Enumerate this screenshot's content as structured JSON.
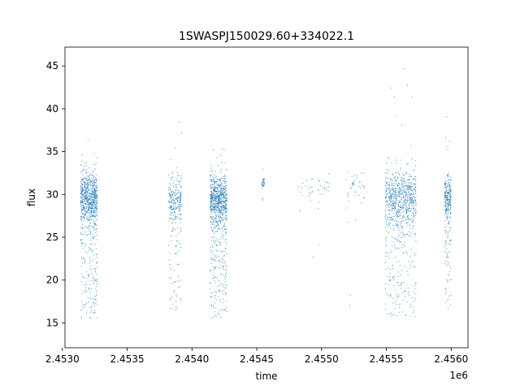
{
  "chart_data": {
    "type": "scatter",
    "title": "1SWASPJ150029.60+334022.1",
    "xlabel": "time",
    "ylabel": "flux",
    "x_offset_label": "1e6",
    "xlim": [
      2.45302,
      2.45613
    ],
    "ylim": [
      12.1,
      47.2
    ],
    "x_ticks": [
      2.453,
      2.4535,
      2.454,
      2.4545,
      2.455,
      2.4555,
      2.456
    ],
    "x_tick_labels": [
      "2.4530",
      "2.4535",
      "2.4540",
      "2.4545",
      "2.4550",
      "2.4555",
      "2.4560"
    ],
    "y_ticks": [
      15,
      20,
      25,
      30,
      35,
      40,
      45
    ],
    "y_tick_labels": [
      "15",
      "20",
      "25",
      "30",
      "35",
      "40",
      "45"
    ],
    "grid": false,
    "legend": "none",
    "point_color": "#1f77b4",
    "series": [
      {
        "clusters": [
          {
            "x_range": [
              2.45314,
              2.45327
            ],
            "y_center": 29.6,
            "y_spread": 1.4,
            "y_range": [
              15.5,
              36.5
            ],
            "density": "high"
          },
          {
            "x_range": [
              2.45382,
              2.45392
            ],
            "y_center": 29.5,
            "y_spread": 1.3,
            "y_range": [
              16.0,
              38.5
            ],
            "density": "medium"
          },
          {
            "x_range": [
              2.45414,
              2.45427
            ],
            "y_center": 29.3,
            "y_spread": 1.5,
            "y_range": [
              15.5,
              35.5
            ],
            "density": "high"
          },
          {
            "x_range": [
              2.45454,
              2.45456
            ],
            "y_center": 31.3,
            "y_spread": 0.4,
            "y_range": [
              31.0,
              31.8
            ],
            "density": "low"
          },
          {
            "x_range": [
              2.45482,
              2.45506
            ],
            "y_center": 30.6,
            "y_spread": 0.7,
            "y_range": [
              22.5,
              31.8
            ],
            "density": "low"
          },
          {
            "x_range": [
              2.45519,
              2.45534
            ],
            "y_center": 31.0,
            "y_spread": 1.0,
            "y_range": [
              16.0,
              32.5
            ],
            "density": "low"
          },
          {
            "x_range": [
              2.45549,
              2.45573
            ],
            "y_center": 29.6,
            "y_spread": 1.6,
            "y_range": [
              15.5,
              45.5
            ],
            "density": "high"
          },
          {
            "x_range": [
              2.45595,
              2.456
            ],
            "y_center": 29.5,
            "y_spread": 1.2,
            "y_range": [
              16.0,
              39.3
            ],
            "density": "medium"
          }
        ]
      }
    ]
  }
}
